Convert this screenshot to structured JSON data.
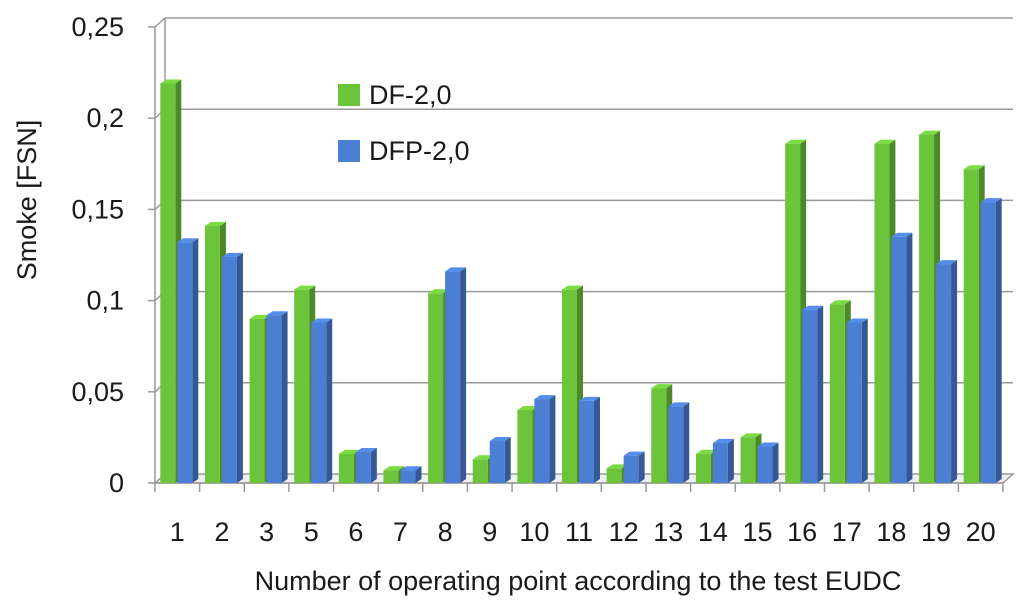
{
  "chart_data": {
    "type": "bar",
    "xlabel": "Number of operating point according to the test EUDC",
    "ylabel": "Smoke   [FSN]",
    "categories": [
      "1",
      "2",
      "3",
      "5",
      "6",
      "7",
      "8",
      "9",
      "10",
      "11",
      "12",
      "13",
      "14",
      "15",
      "16",
      "17",
      "18",
      "19",
      "20"
    ],
    "series": [
      {
        "name": "DF-2,0",
        "color": "#6cc43a",
        "values": [
          0.219,
          0.141,
          0.09,
          0.106,
          0.016,
          0.007,
          0.104,
          0.013,
          0.04,
          0.106,
          0.008,
          0.052,
          0.016,
          0.025,
          0.186,
          0.098,
          0.186,
          0.191,
          0.172
        ]
      },
      {
        "name": "DFP-2,0",
        "color": "#4a7fd4",
        "values": [
          0.132,
          0.124,
          0.092,
          0.088,
          0.017,
          0.007,
          0.116,
          0.023,
          0.046,
          0.045,
          0.015,
          0.042,
          0.022,
          0.02,
          0.095,
          0.088,
          0.135,
          0.12,
          0.154
        ]
      }
    ],
    "yticks": [
      "0",
      "0,05",
      "0,1",
      "0,15",
      "0,2",
      "0,25"
    ],
    "ylim": [
      0,
      0.25
    ],
    "grid": true,
    "legend_position": "top-left inside"
  }
}
